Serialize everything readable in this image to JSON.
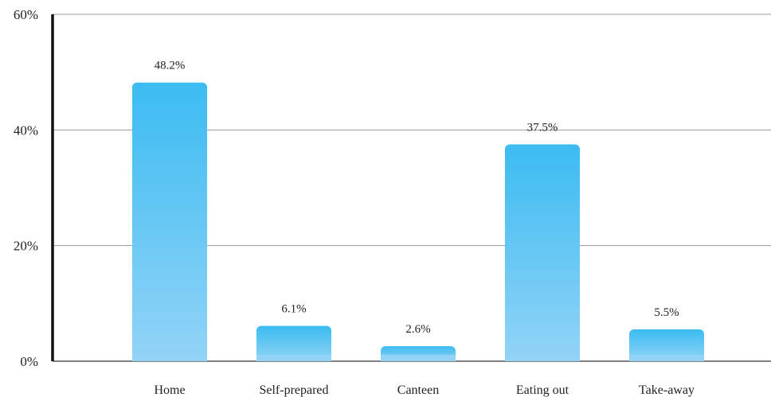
{
  "chart_data": {
    "type": "bar",
    "title": "",
    "xlabel": "",
    "ylabel": "",
    "categories": [
      "Home",
      "Self-prepared",
      "Canteen",
      "Eating out",
      "Take-away"
    ],
    "values": [
      48.2,
      6.1,
      2.6,
      37.5,
      5.5
    ],
    "value_labels": [
      "48.2%",
      "6.1%",
      "2.6%",
      "37.5%",
      "5.5%"
    ],
    "ylim": [
      0,
      60
    ],
    "y_ticks": [
      0,
      20,
      40,
      60
    ],
    "y_tick_labels": [
      "0%",
      "20%",
      "40%",
      "60%"
    ],
    "grid": true,
    "legend": "none",
    "colors": {
      "bar_top": "#3bbcf1",
      "bar_bottom": "#92d3f6",
      "grid": "#999999",
      "axis": "#111111"
    }
  }
}
